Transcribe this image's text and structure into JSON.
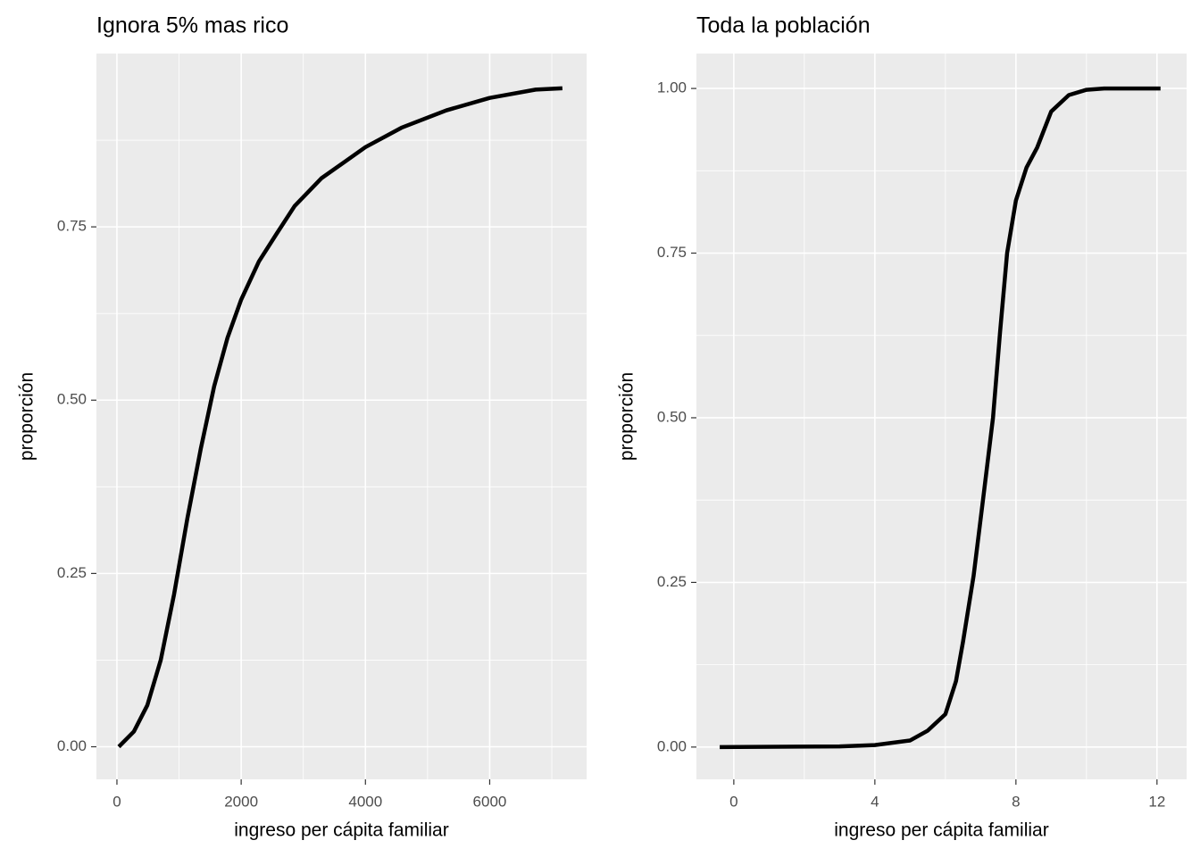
{
  "chart_data": [
    {
      "type": "line",
      "title": "Ignora 5% mas rico",
      "x_label": "ingreso per cápita familiar",
      "y_label": "proporción",
      "xlim": [
        -330,
        7560
      ],
      "ylim": [
        -0.047,
        1.0
      ],
      "xticks": [
        0,
        2000,
        4000,
        6000
      ],
      "yticks": [
        {
          "value": 0,
          "label": "0.00"
        },
        {
          "value": 0.25,
          "label": "0.25"
        },
        {
          "value": 0.5,
          "label": "0.50"
        },
        {
          "value": 0.75,
          "label": "0.75"
        }
      ],
      "xminor_ticks": [
        1000,
        3000,
        5000,
        7000
      ],
      "yminor_ticks": [
        0.125,
        0.375,
        0.625,
        0.875
      ],
      "grid": true,
      "series": [
        {
          "color": "#000000",
          "x": [
            30,
            273,
            490,
            705,
            920,
            1135,
            1350,
            1565,
            1780,
            2000,
            2285,
            2570,
            2860,
            3290,
            4000,
            4580,
            5300,
            6000,
            6740,
            7170
          ],
          "values": [
            0,
            0.022,
            0.06,
            0.125,
            0.22,
            0.33,
            0.43,
            0.52,
            0.59,
            0.645,
            0.7,
            0.74,
            0.78,
            0.82,
            0.865,
            0.893,
            0.918,
            0.936,
            0.948,
            0.95
          ]
        }
      ]
    },
    {
      "type": "line",
      "title": "Toda la población",
      "x_label": "ingreso per cápita familiar",
      "y_label": "proporción",
      "xlim": [
        -1.06,
        12.84
      ],
      "ylim": [
        -0.049,
        1.053
      ],
      "xticks": [
        0,
        4,
        8,
        12
      ],
      "yticks": [
        {
          "value": 0,
          "label": "0.00"
        },
        {
          "value": 0.25,
          "label": "0.25"
        },
        {
          "value": 0.5,
          "label": "0.50"
        },
        {
          "value": 0.75,
          "label": "0.75"
        },
        {
          "value": 1,
          "label": "1.00"
        }
      ],
      "xminor_ticks": [
        2,
        6,
        10
      ],
      "yminor_ticks": [
        0.125,
        0.375,
        0.625,
        0.875
      ],
      "grid": true,
      "series": [
        {
          "color": "#000000",
          "x": [
            -0.4,
            3,
            4,
            5,
            5.5,
            6,
            6.3,
            6.5,
            6.8,
            7.1,
            7.35,
            7.55,
            7.75,
            8.0,
            8.3,
            8.6,
            9.0,
            9.5,
            10,
            10.5,
            12.1
          ],
          "values": [
            0,
            0.001,
            0.003,
            0.01,
            0.025,
            0.05,
            0.1,
            0.16,
            0.26,
            0.39,
            0.5,
            0.63,
            0.75,
            0.83,
            0.88,
            0.91,
            0.965,
            0.99,
            0.998,
            1,
            1
          ]
        }
      ]
    }
  ]
}
